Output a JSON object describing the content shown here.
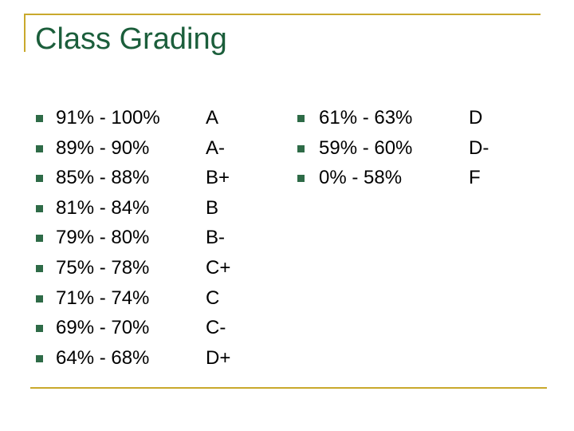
{
  "title": "Class Grading",
  "left_list": [
    [
      "91% - 100%",
      "A"
    ],
    [
      "89% - 90%",
      "A-"
    ],
    [
      "85% - 88%",
      "B+"
    ],
    [
      "81% - 84%",
      "B"
    ],
    [
      "79% - 80%",
      "B-"
    ],
    [
      "75% - 78%",
      "C+"
    ],
    [
      "71% - 74%",
      "C"
    ],
    [
      "69% - 70%",
      "C-"
    ],
    [
      "64% - 68%",
      "D+"
    ]
  ],
  "right_list": [
    [
      "61% - 63%",
      "D"
    ],
    [
      "59% - 60%",
      "D-"
    ],
    [
      "0% - 58%",
      "F"
    ]
  ]
}
